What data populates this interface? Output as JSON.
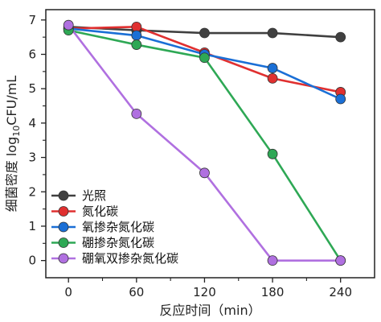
{
  "chart_data": {
    "type": "line",
    "title": "",
    "xlabel": "反应时间（min）",
    "ylabel_main": "细菌密度 log",
    "ylabel_sub": "10",
    "ylabel_unit": "CFU/mL",
    "x": [
      0,
      60,
      120,
      180,
      240
    ],
    "x_ticks": [
      "0",
      "60",
      "120",
      "180",
      "240"
    ],
    "xlim": [
      -20,
      270
    ],
    "y_ticks": [
      "0",
      "1",
      "2",
      "3",
      "4",
      "5",
      "6",
      "7"
    ],
    "ylim": [
      -0.5,
      7.3
    ],
    "grid": false,
    "legend_position": "bottom-left",
    "series": [
      {
        "name": "光照",
        "color": "#404040",
        "values": [
          6.8,
          6.7,
          6.62,
          6.62,
          6.5
        ]
      },
      {
        "name": "氮化碳",
        "color": "#e03030",
        "values": [
          6.75,
          6.8,
          6.05,
          5.3,
          4.9
        ]
      },
      {
        "name": "氧掺杂氮化碳",
        "color": "#1a6fd6",
        "values": [
          6.75,
          6.55,
          6.0,
          5.6,
          4.7
        ]
      },
      {
        "name": "硼掺杂氮化碳",
        "color": "#2ea855",
        "values": [
          6.7,
          6.28,
          5.9,
          3.1,
          0.0
        ]
      },
      {
        "name": "硼氧双掺杂氮化碳",
        "color": "#b070e0",
        "values": [
          6.85,
          4.27,
          2.55,
          0.0,
          0.0
        ]
      }
    ]
  }
}
